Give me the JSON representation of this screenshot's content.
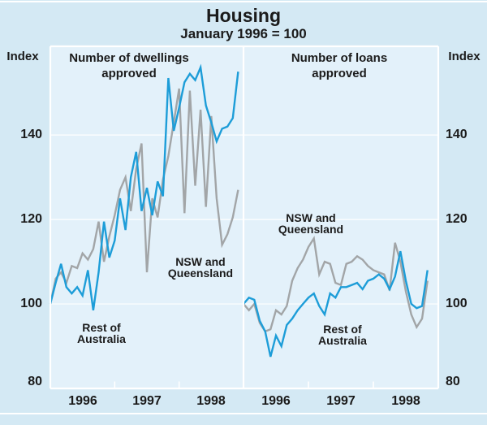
{
  "title": "Housing",
  "subtitle": "January 1996 = 100",
  "colors": {
    "background": "#d4e9f4",
    "plot_fill": "#e3f1fa",
    "frame": "#ffffff",
    "text": "#1b1b1b",
    "nsw_qld_line": "#a2a5a7",
    "rest_of_australia_line": "#1d9dd8"
  },
  "axis": {
    "left_unit": "Index",
    "right_unit": "Index",
    "tick_labels": [
      "140",
      "120",
      "100",
      "80"
    ],
    "x_tick_labels": [
      "1996",
      "1997",
      "1998"
    ]
  },
  "chart_data": [
    {
      "type": "line",
      "panel": "left",
      "title": "Number of dwellings approved",
      "title_lines": [
        "Number of dwellings",
        "approved"
      ],
      "x_start": "Jan 1996",
      "x_end": "Dec 1998",
      "x_frequency": "monthly",
      "xlim_years": [
        1996,
        1999
      ],
      "x_tick_years": [
        1997,
        1998
      ],
      "ylim": [
        80,
        161
      ],
      "gridlines": [
        100,
        120,
        140
      ],
      "series": [
        {
          "name": "NSW and Queensland",
          "color": "#a2a5a7",
          "values": [
            100,
            106,
            107.5,
            105,
            109,
            108.5,
            112,
            110.5,
            113,
            119.5,
            110,
            116,
            121,
            127,
            130,
            122,
            132,
            138,
            107.5,
            125,
            120.5,
            129.5,
            135,
            143,
            151,
            121.5,
            150.5,
            128,
            146,
            123,
            144.5,
            125,
            114,
            116.5,
            120.5,
            127
          ]
        },
        {
          "name": "Rest of Australia",
          "color": "#1d9dd8",
          "values": [
            100,
            105,
            109.5,
            104,
            102.5,
            104,
            102,
            108,
            98.5,
            107.5,
            119.5,
            111,
            115,
            125,
            117.5,
            130,
            136,
            122,
            127.5,
            121,
            129,
            125.5,
            153.5,
            141,
            146.5,
            152.5,
            154.5,
            153,
            156,
            147,
            143,
            138.5,
            141.5,
            142,
            144,
            155
          ]
        }
      ],
      "annotations": [
        {
          "lines": [
            "NSW and",
            "Queensland"
          ]
        },
        {
          "lines": [
            "Rest of",
            "Australia"
          ]
        }
      ]
    },
    {
      "type": "line",
      "panel": "right",
      "title": "Number of loans approved",
      "title_lines": [
        "Number of loans",
        "approved"
      ],
      "x_start": "Jan 1996",
      "x_end": "Nov 1998",
      "x_frequency": "monthly",
      "xlim_years": [
        1996,
        1999
      ],
      "x_tick_years": [
        1997,
        1998
      ],
      "ylim": [
        80,
        161
      ],
      "gridlines": [
        100,
        120,
        140
      ],
      "series": [
        {
          "name": "NSW and Queensland",
          "color": "#a2a5a7",
          "values": [
            100,
            98.5,
            100,
            95.5,
            93.5,
            94,
            98.5,
            97.5,
            99.5,
            105.5,
            108.5,
            110.5,
            113.5,
            115.5,
            107,
            110,
            109.5,
            105,
            104.5,
            109.5,
            110,
            111.3,
            110.5,
            109,
            108,
            107.5,
            107,
            103.2,
            114.5,
            110,
            103,
            97.5,
            94.5,
            96.5,
            105.5
          ]
        },
        {
          "name": "Rest of Australia",
          "color": "#1d9dd8",
          "values": [
            100,
            101.5,
            101,
            96,
            93.5,
            87.5,
            92.5,
            90,
            95,
            96.5,
            98.5,
            100,
            101.5,
            102.5,
            99.5,
            97.5,
            102.5,
            101.5,
            104,
            104,
            104.5,
            105,
            103.5,
            105.5,
            106,
            107,
            106,
            103.5,
            106.5,
            112.5,
            105.5,
            100,
            99,
            99.5,
            108
          ]
        }
      ],
      "annotations": [
        {
          "lines": [
            "NSW and",
            "Queensland"
          ]
        },
        {
          "lines": [
            "Rest of",
            "Australia"
          ]
        }
      ]
    }
  ]
}
